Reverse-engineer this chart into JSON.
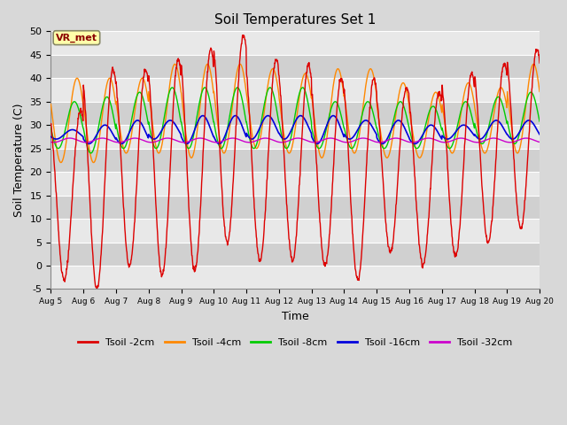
{
  "title": "Soil Temperatures Set 1",
  "xlabel": "Time",
  "ylabel": "Soil Temperature (C)",
  "ylim": [
    -5,
    50
  ],
  "background_color": "#d8d8d8",
  "plot_bg_color": "#d8d8d8",
  "grid_color": "#ffffff",
  "annotation_text": "VR_met",
  "annotation_color": "#8B0000",
  "annotation_bg": "#ffffaa",
  "series_colors": {
    "2cm": "#dd0000",
    "4cm": "#ff8800",
    "8cm": "#00cc00",
    "16cm": "#0000dd",
    "32cm": "#cc00cc"
  },
  "legend_labels": [
    "Tsoil -2cm",
    "Tsoil -4cm",
    "Tsoil -8cm",
    "Tsoil -16cm",
    "Tsoil -32cm"
  ],
  "xtick_labels": [
    "Aug 5",
    "Aug 6",
    "Aug 7",
    "Aug 8",
    "Aug 9",
    "Aug 10",
    "Aug 11",
    "Aug 12",
    "Aug 13",
    "Aug 14",
    "Aug 15",
    "Aug 16",
    "Aug 17",
    "Aug 18",
    "Aug 19",
    "Aug 20"
  ],
  "ytick_values": [
    -5,
    0,
    5,
    10,
    15,
    20,
    25,
    30,
    35,
    40,
    45,
    50
  ],
  "band_colors": [
    "#e8e8e8",
    "#d0d0d0"
  ]
}
